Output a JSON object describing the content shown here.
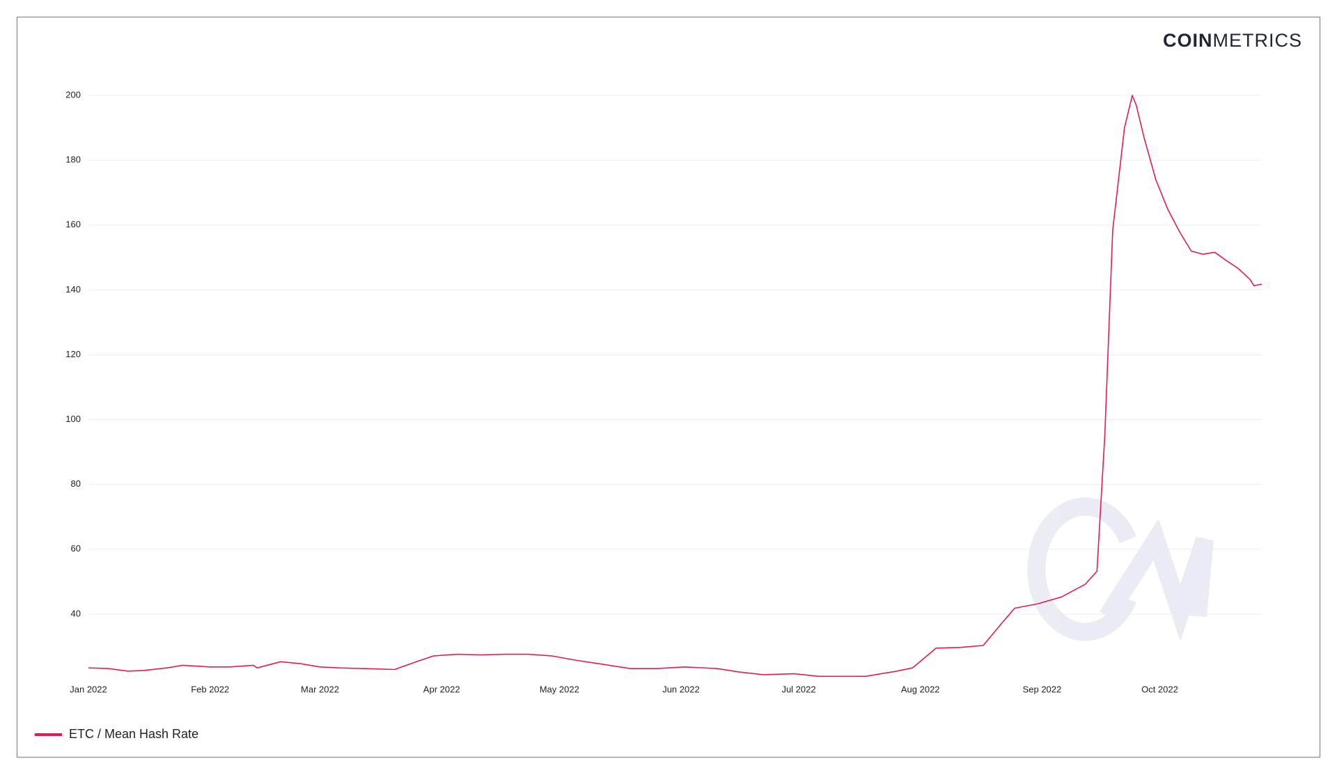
{
  "brand": {
    "bold": "COIN",
    "light": "METRICS"
  },
  "chart_data": {
    "type": "line",
    "x": [
      0,
      5,
      10,
      14,
      20,
      24,
      31,
      36,
      42,
      43,
      49,
      54,
      59,
      64,
      70,
      78,
      84,
      88,
      94,
      100,
      106,
      112,
      118,
      124,
      130,
      138,
      145,
      152,
      160,
      166,
      172,
      180,
      186,
      198,
      206,
      210,
      216,
      222,
      228,
      232,
      236,
      242,
      248,
      254,
      257,
      259,
      261,
      264,
      266,
      267,
      269,
      272,
      275,
      278,
      281,
      284,
      287,
      290,
      293,
      296,
      297,
      299
    ],
    "series": [
      {
        "name": "ETC / Mean Hash Rate",
        "color": "#e8194f",
        "values": [
          23.4,
          23.2,
          22.4,
          22.6,
          23.4,
          24.2,
          23.7,
          23.7,
          24.2,
          23.4,
          25.3,
          24.7,
          23.7,
          23.4,
          23.2,
          22.9,
          25.5,
          27.1,
          27.6,
          27.4,
          27.6,
          27.6,
          27.1,
          25.8,
          24.7,
          23.2,
          23.2,
          23.7,
          23.2,
          22.1,
          21.3,
          21.6,
          20.8,
          20.8,
          22.4,
          23.4,
          29.5,
          29.7,
          30.3,
          36.1,
          41.8,
          43.2,
          45.3,
          49.2,
          53.2,
          95.3,
          158.4,
          190,
          200,
          197,
          187,
          174,
          165,
          158,
          152,
          151,
          151.6,
          149,
          146.6,
          143.2,
          141.3,
          141.8
        ]
      }
    ],
    "xlim": [
      0,
      299
    ],
    "xticks": [
      {
        "value": 0,
        "label": "Jan 2022"
      },
      {
        "value": 31,
        "label": "Feb 2022"
      },
      {
        "value": 59,
        "label": "Mar 2022"
      },
      {
        "value": 90,
        "label": "Apr 2022"
      },
      {
        "value": 120,
        "label": "May 2022"
      },
      {
        "value": 151,
        "label": "Jun 2022"
      },
      {
        "value": 181,
        "label": "Jul 2022"
      },
      {
        "value": 212,
        "label": "Aug 2022"
      },
      {
        "value": 243,
        "label": "Sep 2022"
      },
      {
        "value": 273,
        "label": "Oct 2022"
      }
    ],
    "ylim": [
      20,
      200
    ],
    "yticks": [
      40,
      60,
      80,
      100,
      120,
      140,
      160,
      180,
      200
    ],
    "grid": true,
    "legend": "bottom-left"
  }
}
